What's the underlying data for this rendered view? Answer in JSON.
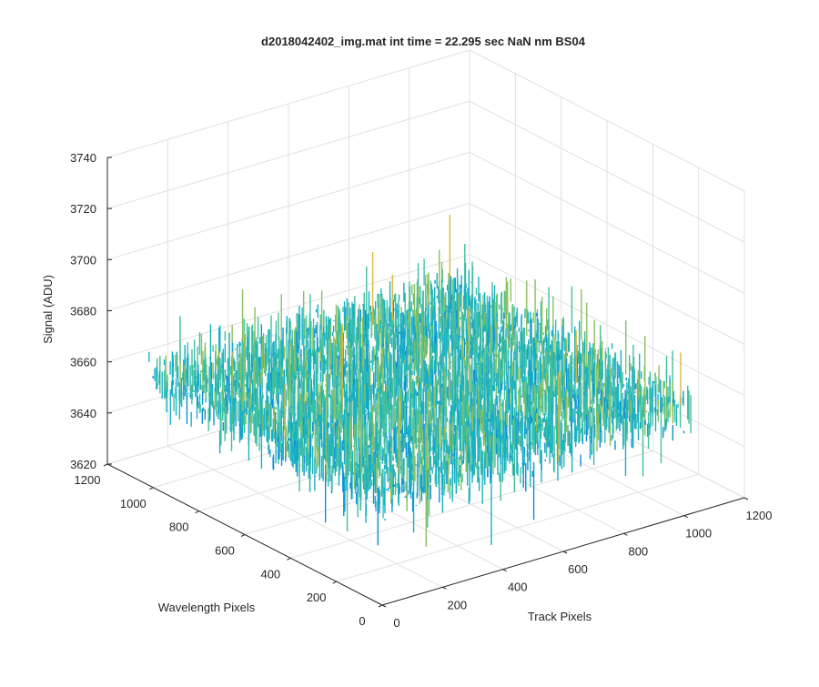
{
  "figure": {
    "background": "#ffffff"
  },
  "chart_data": {
    "type": "surface",
    "title": "d2018042402_img.mat int time = 22.295 sec  NaN nm BS04",
    "xlabel": "Track Pixels",
    "ylabel": "Wavelength Pixels",
    "zlabel": "Signal (ADU)",
    "xlim": [
      0,
      1200
    ],
    "ylim": [
      0,
      1200
    ],
    "zlim": [
      3620,
      3740
    ],
    "x_ticks": [
      0,
      200,
      400,
      600,
      800,
      1000,
      1200
    ],
    "y_ticks": [
      0,
      200,
      400,
      600,
      800,
      1000,
      1200
    ],
    "z_ticks": [
      3620,
      3640,
      3660,
      3680,
      3700,
      3720,
      3740
    ],
    "data_extent": {
      "x": [
        1,
        1024
      ],
      "y": [
        1,
        1024
      ]
    },
    "signal_mean": 3662,
    "signal_range": [
      3630,
      3720
    ],
    "colormap": [
      "#1f5fd0",
      "#0e8fd6",
      "#18b0c4",
      "#3fbfa0",
      "#8cc060",
      "#d9b840",
      "#f2d024"
    ],
    "grid": true,
    "view": "3d-isometric"
  }
}
